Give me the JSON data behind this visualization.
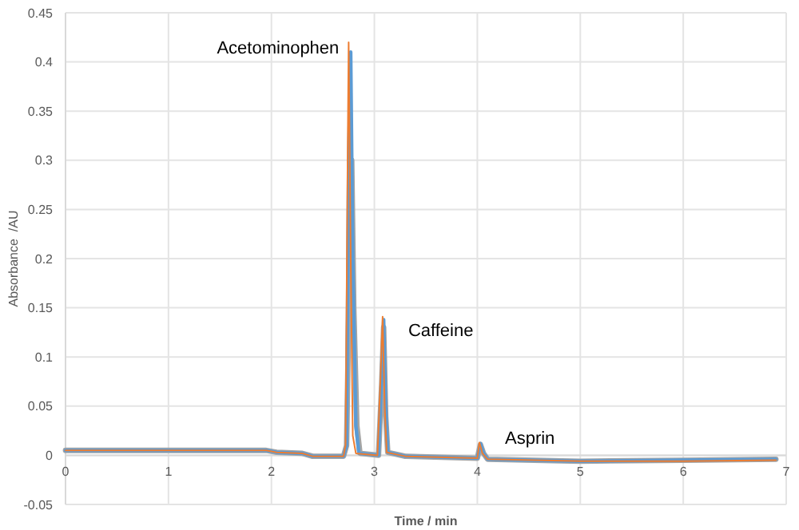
{
  "chart_data": {
    "type": "line",
    "xlabel": "Time / min",
    "ylabel": "Absorbance  /AU",
    "xlim": [
      0,
      7
    ],
    "xticks": [
      0,
      1,
      2,
      3,
      4,
      5,
      6,
      7
    ],
    "ylim": [
      -0.05,
      0.45
    ],
    "yticks": [
      -0.05,
      0,
      0.05,
      0.1,
      0.15,
      0.2,
      0.25,
      0.3,
      0.35,
      0.4,
      0.45
    ],
    "grid": true,
    "marker": "none",
    "line_style": "solid",
    "series": [
      {
        "color": "#a5a5a5",
        "x": [
          0,
          1,
          1.95,
          2.05,
          2.3,
          2.4,
          2.7,
          2.73,
          2.76,
          2.78,
          2.8,
          2.83,
          2.86,
          3.04,
          3.07,
          3.09,
          3.11,
          3.13,
          3.3,
          4.0,
          4.03,
          4.06,
          4.1,
          5,
          6,
          6.9
        ],
        "values": [
          0.005,
          0.005,
          0.005,
          0.003,
          0.002,
          -0.001,
          -0.001,
          0.01,
          0.2,
          0.3,
          0.15,
          0.03,
          0.002,
          0,
          0.07,
          0.13,
          0.04,
          0.003,
          -0.001,
          -0.003,
          0.011,
          0.002,
          -0.004,
          -0.006,
          -0.005,
          -0.004
        ]
      },
      {
        "color": "#5b9bd5",
        "x": [
          0,
          1,
          1.95,
          2.05,
          2.3,
          2.4,
          2.7,
          2.73,
          2.75,
          2.77,
          2.79,
          2.82,
          2.85,
          3.04,
          3.07,
          3.09,
          3.11,
          3.13,
          3.3,
          4.0,
          4.03,
          4.06,
          4.1,
          5,
          6,
          6.9
        ],
        "values": [
          0.005,
          0.005,
          0.005,
          0.003,
          0.002,
          -0.001,
          -0.001,
          0.01,
          0.3,
          0.41,
          0.2,
          0.03,
          0.002,
          0,
          0.08,
          0.138,
          0.05,
          0.003,
          -0.001,
          -0.003,
          0.012,
          0.002,
          -0.004,
          -0.006,
          -0.005,
          -0.004
        ]
      },
      {
        "color": "#ed7d31",
        "x": [
          0,
          1,
          1.95,
          2.05,
          2.3,
          2.4,
          2.7,
          2.72,
          2.74,
          2.75,
          2.77,
          2.79,
          2.82,
          3.03,
          3.06,
          3.08,
          3.1,
          3.12,
          3.3,
          4.0,
          4.02,
          4.05,
          4.1,
          5,
          6,
          6.9
        ],
        "values": [
          0.005,
          0.005,
          0.005,
          0.003,
          0.002,
          -0.001,
          -0.001,
          0.01,
          0.3,
          0.42,
          0.2,
          0.02,
          0.002,
          0,
          0.08,
          0.141,
          0.05,
          0.003,
          -0.001,
          -0.003,
          0.013,
          0.002,
          -0.004,
          -0.006,
          -0.006,
          -0.005
        ]
      }
    ],
    "annotations": [
      {
        "text": "Acetominophen",
        "x": 2.75,
        "y": 0.42
      },
      {
        "text": "Caffeine",
        "x": 3.08,
        "y": 0.141
      },
      {
        "text": "Asprin",
        "x": 4.02,
        "y": 0.013
      }
    ]
  }
}
